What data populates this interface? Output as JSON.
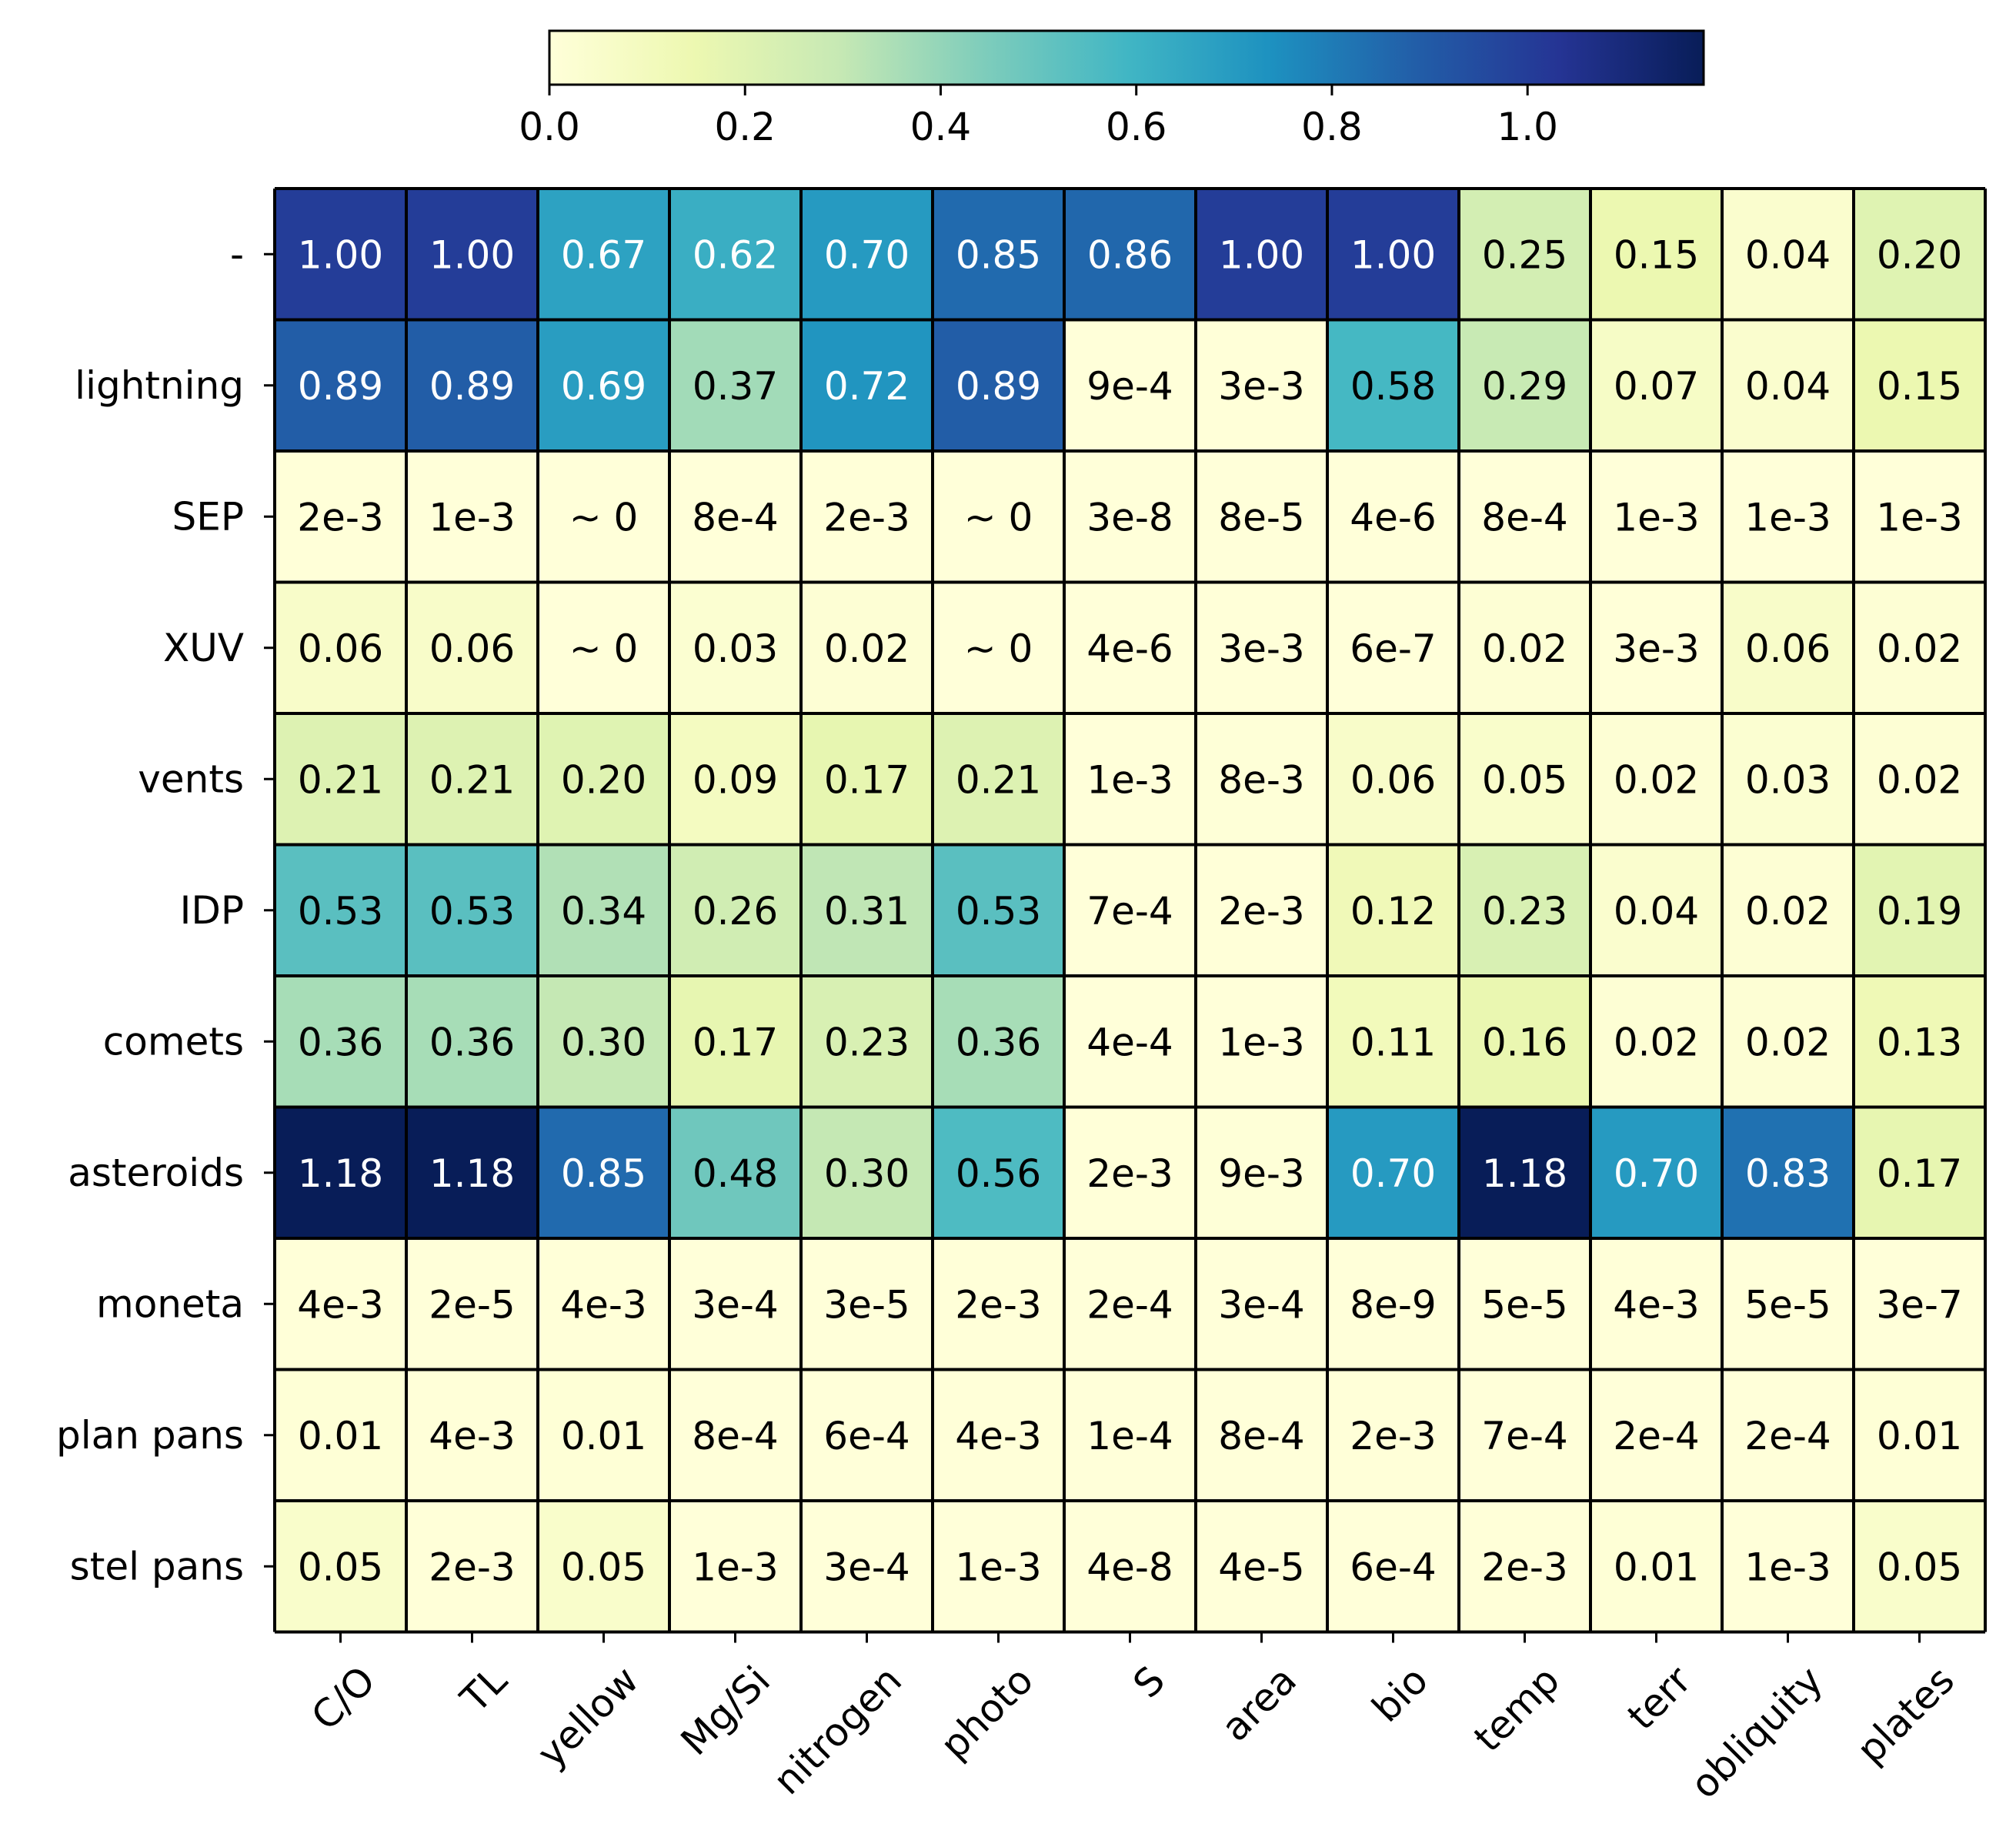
{
  "chart_data": {
    "type": "heatmap",
    "columns": [
      "C/O",
      "TL",
      "yellow",
      "Mg/Si",
      "nitrogen",
      "photo",
      "S",
      "area",
      "bio",
      "temp",
      "terr",
      "obliquity",
      "plates"
    ],
    "rows": [
      "-",
      "lightning",
      "SEP",
      "XUV",
      "vents",
      "IDP",
      "comets",
      "asteroids",
      "moneta",
      "plan pans",
      "stel pans"
    ],
    "values": [
      [
        1.0,
        1.0,
        0.67,
        0.62,
        0.7,
        0.85,
        0.86,
        1.0,
        1.0,
        0.25,
        0.15,
        0.04,
        0.2
      ],
      [
        0.89,
        0.89,
        0.69,
        0.37,
        0.72,
        0.89,
        0.0009,
        0.003,
        0.58,
        0.29,
        0.07,
        0.04,
        0.15
      ],
      [
        0.002,
        0.001,
        0,
        0.0008,
        0.002,
        0,
        3e-08,
        8e-05,
        4e-06,
        0.0008,
        0.001,
        0.001,
        0.001
      ],
      [
        0.06,
        0.06,
        0,
        0.03,
        0.02,
        0,
        4e-06,
        0.003,
        6e-07,
        0.02,
        0.003,
        0.06,
        0.02
      ],
      [
        0.21,
        0.21,
        0.2,
        0.09,
        0.17,
        0.21,
        0.001,
        0.008,
        0.06,
        0.05,
        0.02,
        0.03,
        0.02
      ],
      [
        0.53,
        0.53,
        0.34,
        0.26,
        0.31,
        0.53,
        0.0007,
        0.002,
        0.12,
        0.23,
        0.04,
        0.02,
        0.19
      ],
      [
        0.36,
        0.36,
        0.3,
        0.17,
        0.23,
        0.36,
        0.0004,
        0.001,
        0.11,
        0.16,
        0.02,
        0.02,
        0.13
      ],
      [
        1.18,
        1.18,
        0.85,
        0.48,
        0.3,
        0.56,
        0.002,
        0.009,
        0.7,
        1.18,
        0.7,
        0.83,
        0.17
      ],
      [
        0.004,
        2e-05,
        0.004,
        0.0003,
        3e-05,
        0.002,
        0.0002,
        0.0003,
        8e-09,
        5e-05,
        0.004,
        5e-05,
        3e-07
      ],
      [
        0.01,
        0.004,
        0.01,
        0.0008,
        0.0006,
        0.004,
        0.0001,
        0.0008,
        0.002,
        0.0007,
        0.0002,
        0.0002,
        0.01
      ],
      [
        0.05,
        0.002,
        0.05,
        0.001,
        0.0003,
        0.001,
        4e-08,
        4e-05,
        0.0006,
        0.002,
        0.01,
        0.001,
        0.05
      ]
    ],
    "labels": [
      [
        "1.00",
        "1.00",
        "0.67",
        "0.62",
        "0.70",
        "0.85",
        "0.86",
        "1.00",
        "1.00",
        "0.25",
        "0.15",
        "0.04",
        "0.20"
      ],
      [
        "0.89",
        "0.89",
        "0.69",
        "0.37",
        "0.72",
        "0.89",
        "9e-4",
        "3e-3",
        "0.58",
        "0.29",
        "0.07",
        "0.04",
        "0.15"
      ],
      [
        "2e-3",
        "1e-3",
        "~ 0",
        "8e-4",
        "2e-3",
        "~ 0",
        "3e-8",
        "8e-5",
        "4e-6",
        "8e-4",
        "1e-3",
        "1e-3",
        "1e-3"
      ],
      [
        "0.06",
        "0.06",
        "~ 0",
        "0.03",
        "0.02",
        "~ 0",
        "4e-6",
        "3e-3",
        "6e-7",
        "0.02",
        "3e-3",
        "0.06",
        "0.02"
      ],
      [
        "0.21",
        "0.21",
        "0.20",
        "0.09",
        "0.17",
        "0.21",
        "1e-3",
        "8e-3",
        "0.06",
        "0.05",
        "0.02",
        "0.03",
        "0.02"
      ],
      [
        "0.53",
        "0.53",
        "0.34",
        "0.26",
        "0.31",
        "0.53",
        "7e-4",
        "2e-3",
        "0.12",
        "0.23",
        "0.04",
        "0.02",
        "0.19"
      ],
      [
        "0.36",
        "0.36",
        "0.30",
        "0.17",
        "0.23",
        "0.36",
        "4e-4",
        "1e-3",
        "0.11",
        "0.16",
        "0.02",
        "0.02",
        "0.13"
      ],
      [
        "1.18",
        "1.18",
        "0.85",
        "0.48",
        "0.30",
        "0.56",
        "2e-3",
        "9e-3",
        "0.70",
        "1.18",
        "0.70",
        "0.83",
        "0.17"
      ],
      [
        "4e-3",
        "2e-5",
        "4e-3",
        "3e-4",
        "3e-5",
        "2e-3",
        "2e-4",
        "3e-4",
        "8e-9",
        "5e-5",
        "4e-3",
        "5e-5",
        "3e-7"
      ],
      [
        "0.01",
        "4e-3",
        "0.01",
        "8e-4",
        "6e-4",
        "4e-3",
        "1e-4",
        "8e-4",
        "2e-3",
        "7e-4",
        "2e-4",
        "2e-4",
        "0.01"
      ],
      [
        "0.05",
        "2e-3",
        "0.05",
        "1e-3",
        "3e-4",
        "1e-3",
        "4e-8",
        "4e-5",
        "6e-4",
        "2e-3",
        "0.01",
        "1e-3",
        "0.05"
      ]
    ],
    "colorbar": {
      "orientation": "horizontal",
      "placement": "top",
      "range": [
        0,
        1.18
      ],
      "ticks": [
        0.0,
        0.2,
        0.4,
        0.6,
        0.8,
        1.0
      ],
      "tick_labels": [
        "0.0",
        "0.2",
        "0.4",
        "0.6",
        "0.8",
        "1.0"
      ],
      "colormap": "YlGnBu"
    },
    "colormap_stops": [
      "#ffffd9",
      "#edf8b1",
      "#c7e9b4",
      "#7fcdbb",
      "#41b6c4",
      "#1d91c0",
      "#225ea8",
      "#253494",
      "#081d58"
    ],
    "text_color_light": "#ffffff",
    "text_color_dark": "#000000",
    "grid_line_color": "#000000"
  }
}
